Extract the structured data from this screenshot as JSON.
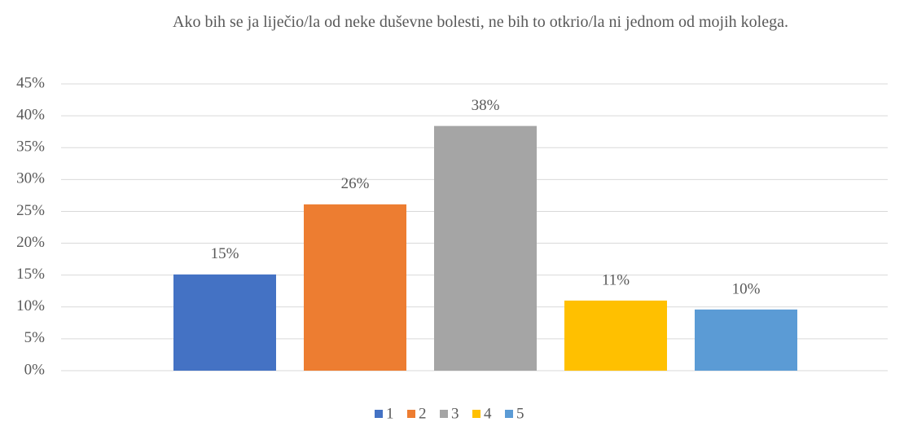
{
  "chart_data": {
    "type": "bar",
    "title": "Ako bih se ja liječio/la od neke duševne bolesti, ne bih to otkrio/la ni jednom od mojih kolega.",
    "categories": [
      null
    ],
    "series": [
      {
        "name": "1",
        "color": "#4472c4",
        "values": [
          15.1
        ],
        "value_labels": [
          "15%"
        ]
      },
      {
        "name": "2",
        "color": "#ed7d31",
        "values": [
          26.1
        ],
        "value_labels": [
          "26%"
        ]
      },
      {
        "name": "3",
        "color": "#a5a5a5",
        "values": [
          38.4
        ],
        "value_labels": [
          "38%"
        ]
      },
      {
        "name": "4",
        "color": "#ffc000",
        "values": [
          11.0
        ],
        "value_labels": [
          "11%"
        ]
      },
      {
        "name": "5",
        "color": "#5b9bd5",
        "values": [
          9.6
        ],
        "value_labels": [
          "10%"
        ]
      }
    ],
    "ylim": [
      0,
      45
    ],
    "yticks": [
      {
        "value": 0,
        "label": "0%"
      },
      {
        "value": 5,
        "label": "5%"
      },
      {
        "value": 10,
        "label": "10%"
      },
      {
        "value": 15,
        "label": "15%"
      },
      {
        "value": 20,
        "label": "20%"
      },
      {
        "value": 25,
        "label": "25%"
      },
      {
        "value": 30,
        "label": "30%"
      },
      {
        "value": 35,
        "label": "35%"
      },
      {
        "value": 40,
        "label": "40%"
      },
      {
        "value": 45,
        "label": "45%"
      }
    ],
    "grid": true,
    "legend": "bottom"
  }
}
